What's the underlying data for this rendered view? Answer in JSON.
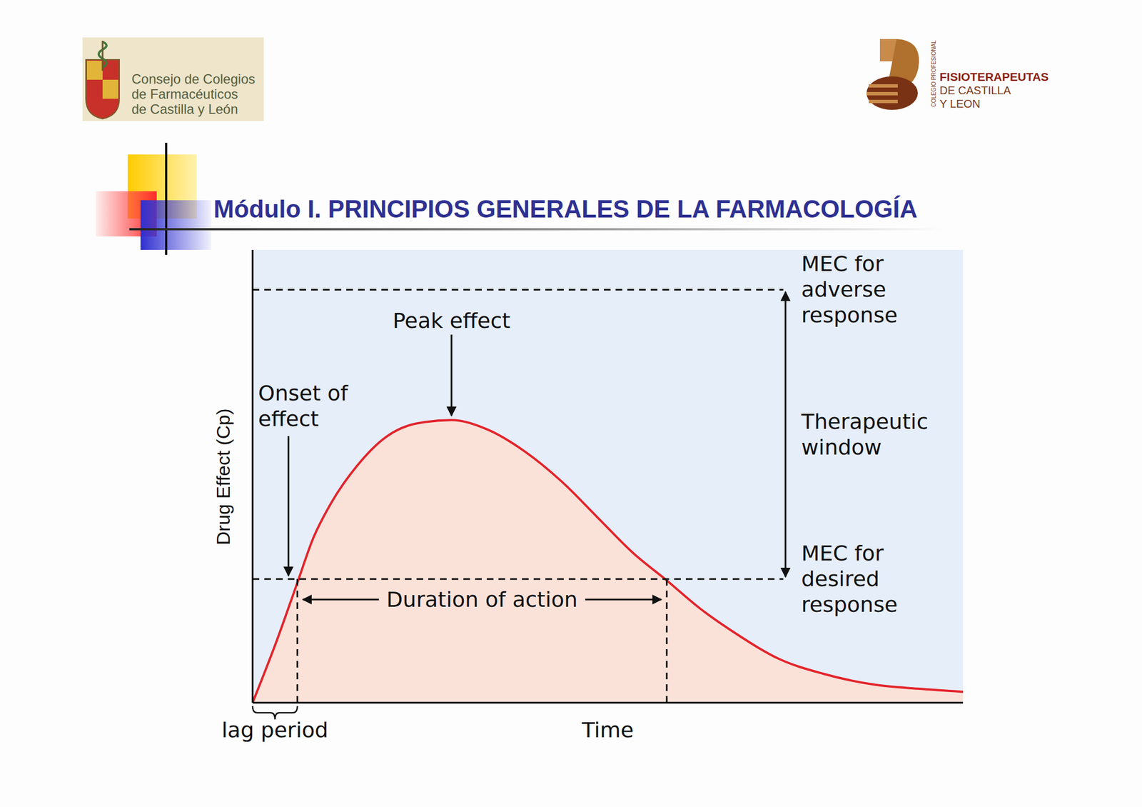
{
  "header": {
    "logo_left": {
      "lines": [
        "Consejo de Colegios",
        "de Farmacéuticos",
        "de Castilla y León"
      ]
    },
    "logo_right": {
      "caption": "COLEGIO PROFESIONAL",
      "lines": [
        "FISIOTERAPEUTAS",
        "DE CASTILLA",
        "Y LEON"
      ]
    },
    "title": "Módulo I. PRINCIPIOS GENERALES DE LA FARMACOLOGÍA"
  },
  "chart_data": {
    "type": "area",
    "x_label": "Time",
    "y_label": "Drug Effect (Cp)",
    "x": [
      0,
      3.4,
      6.3,
      8.5,
      11.1,
      14.7,
      18.8,
      22.9,
      28.0,
      33.1,
      38.3,
      43.4,
      48.5,
      53.6,
      58.3,
      62.9,
      68.0,
      74.2,
      80.3,
      87.5,
      93.6,
      100
    ],
    "values": [
      0,
      13.7,
      26.5,
      36.2,
      44.2,
      52.3,
      58.7,
      61.6,
      62.4,
      60.3,
      55.5,
      49.0,
      41.0,
      33.0,
      27.0,
      20.9,
      15.3,
      9.6,
      6.4,
      4.0,
      3.1,
      2.4
    ],
    "color": "#e3242b",
    "xlim": [
      0,
      100
    ],
    "ylim": [
      0,
      100
    ],
    "tick_labels": false,
    "grid": false,
    "thresholds": [
      {
        "label": "MEC for adverse response",
        "value": 91.2
      },
      {
        "label": "MEC for desired response",
        "value": 27.3
      }
    ],
    "therapeutic_window": {
      "label": "Therapeutic window"
    },
    "peak": {
      "label": "Peak effect"
    },
    "onset": {
      "label": "Onset of effect",
      "x": 6.3
    },
    "duration": {
      "label": "Duration of action",
      "start": 6.3,
      "end": 58.3
    },
    "lag_period": {
      "label": "lag period",
      "start": 0,
      "end": 6.3
    }
  }
}
